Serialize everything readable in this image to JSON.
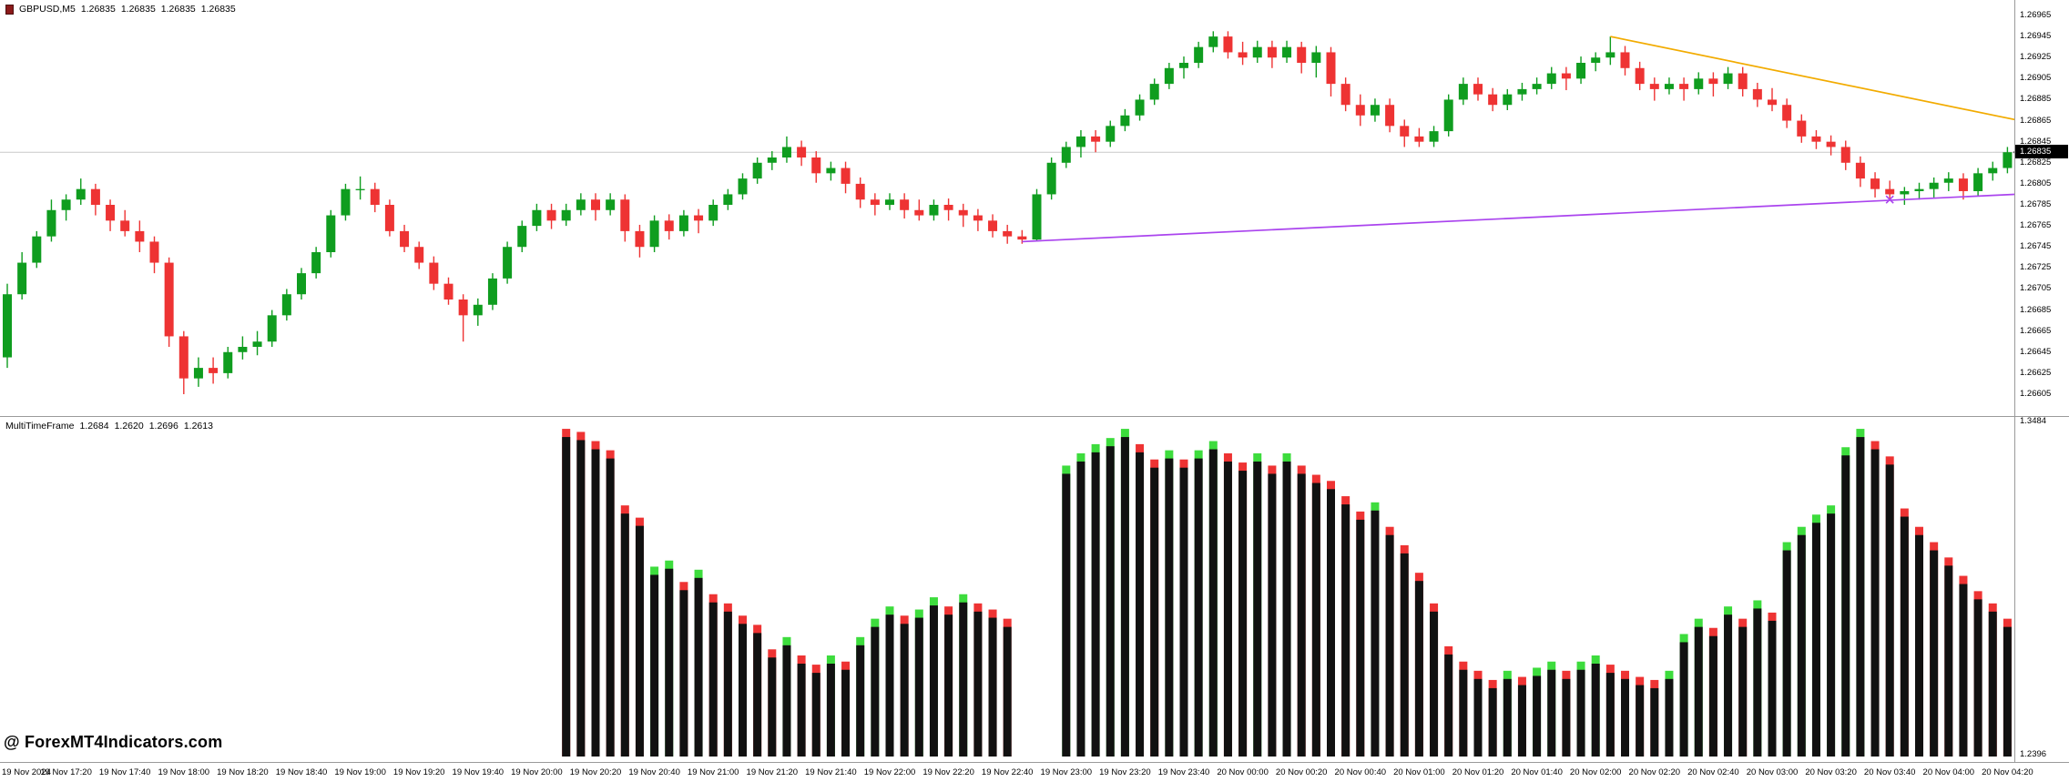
{
  "header": {
    "symbol": "GBPUSD,M5",
    "ohlc": [
      "1.26835",
      "1.26835",
      "1.26835",
      "1.26835"
    ]
  },
  "indicator_panel": {
    "name": "MultiTimeFrame",
    "values": [
      "1.2684",
      "1.2620",
      "1.2696",
      "1.2613"
    ]
  },
  "price_axis": {
    "current": "1.26835"
  },
  "watermark": {
    "text": "@ ForexMT4Indicators.com"
  },
  "colors": {
    "bull": "#0f9d1f",
    "bear": "#ee3333",
    "histogram": "#111111",
    "tip_green": "#3ddc3d",
    "tip_red": "#ee3333",
    "trend_yellow": "#f2ab00",
    "trend_violet": "#aa44ee",
    "current_line": "#c9c9c9",
    "price_badge_bg": "#000000",
    "price_badge_text": "#ffffff"
  },
  "chart_data": {
    "type": "candlestick",
    "title": "GBPUSD,M5",
    "symbol": "GBPUSD",
    "timeframe": "M5",
    "ylim": [
      1.26605,
      1.26965
    ],
    "current_price": 1.26835,
    "y_tick_labels": [
      "1.26965",
      "1.26945",
      "1.26925",
      "1.26905",
      "1.26885",
      "1.26865",
      "1.26845",
      "1.26825",
      "1.26805",
      "1.26785",
      "1.26765",
      "1.26745",
      "1.26725",
      "1.26705",
      "1.26685",
      "1.26665",
      "1.26645",
      "1.26625",
      "1.26605"
    ],
    "x_labels": [
      "19 Nov 2024",
      "19 Nov 17:20",
      "19 Nov 17:40",
      "19 Nov 18:00",
      "19 Nov 18:20",
      "19 Nov 18:40",
      "19 Nov 19:00",
      "19 Nov 19:20",
      "19 Nov 19:40",
      "19 Nov 20:00",
      "19 Nov 20:20",
      "19 Nov 20:40",
      "19 Nov 21:00",
      "19 Nov 21:20",
      "19 Nov 21:40",
      "19 Nov 22:00",
      "19 Nov 22:20",
      "19 Nov 22:40",
      "19 Nov 23:00",
      "19 Nov 23:20",
      "19 Nov 23:40",
      "20 Nov 00:00",
      "20 Nov 00:20",
      "20 Nov 00:40",
      "20 Nov 01:00",
      "20 Nov 01:20",
      "20 Nov 01:40",
      "20 Nov 02:00",
      "20 Nov 02:20",
      "20 Nov 02:40",
      "20 Nov 03:00",
      "20 Nov 03:20",
      "20 Nov 03:40",
      "20 Nov 04:00",
      "20 Nov 04:20"
    ],
    "candles_per_label": 4,
    "candles": [
      [
        1.2664,
        1.2671,
        1.2663,
        1.267
      ],
      [
        1.267,
        1.2674,
        1.26695,
        1.2673
      ],
      [
        1.2673,
        1.2676,
        1.26725,
        1.26755
      ],
      [
        1.26755,
        1.2679,
        1.2675,
        1.2678
      ],
      [
        1.2678,
        1.26795,
        1.2677,
        1.2679
      ],
      [
        1.2679,
        1.2681,
        1.26785,
        1.268
      ],
      [
        1.268,
        1.26805,
        1.26775,
        1.26785
      ],
      [
        1.26785,
        1.2679,
        1.2676,
        1.2677
      ],
      [
        1.2677,
        1.2678,
        1.26755,
        1.2676
      ],
      [
        1.2676,
        1.2677,
        1.2674,
        1.2675
      ],
      [
        1.2675,
        1.26755,
        1.2672,
        1.2673
      ],
      [
        1.2673,
        1.26735,
        1.2665,
        1.2666
      ],
      [
        1.2666,
        1.26665,
        1.26605,
        1.2662
      ],
      [
        1.2662,
        1.2664,
        1.26612,
        1.2663
      ],
      [
        1.2663,
        1.2664,
        1.26615,
        1.26625
      ],
      [
        1.26625,
        1.2665,
        1.2662,
        1.26645
      ],
      [
        1.26645,
        1.2666,
        1.26638,
        1.2665
      ],
      [
        1.2665,
        1.26665,
        1.26642,
        1.26655
      ],
      [
        1.26655,
        1.26685,
        1.2665,
        1.2668
      ],
      [
        1.2668,
        1.26705,
        1.26675,
        1.267
      ],
      [
        1.267,
        1.26725,
        1.26695,
        1.2672
      ],
      [
        1.2672,
        1.26745,
        1.26715,
        1.2674
      ],
      [
        1.2674,
        1.2678,
        1.26735,
        1.26775
      ],
      [
        1.26775,
        1.26805,
        1.2677,
        1.268
      ],
      [
        1.268,
        1.26812,
        1.2679,
        1.268
      ],
      [
        1.268,
        1.26806,
        1.26778,
        1.26785
      ],
      [
        1.26785,
        1.2679,
        1.26755,
        1.2676
      ],
      [
        1.2676,
        1.26766,
        1.2674,
        1.26745
      ],
      [
        1.26745,
        1.2675,
        1.26724,
        1.2673
      ],
      [
        1.2673,
        1.26736,
        1.26704,
        1.2671
      ],
      [
        1.2671,
        1.26716,
        1.2669,
        1.26695
      ],
      [
        1.26695,
        1.267,
        1.26655,
        1.2668
      ],
      [
        1.2668,
        1.26696,
        1.2667,
        1.2669
      ],
      [
        1.2669,
        1.2672,
        1.26685,
        1.26715
      ],
      [
        1.26715,
        1.2675,
        1.2671,
        1.26745
      ],
      [
        1.26745,
        1.2677,
        1.2674,
        1.26765
      ],
      [
        1.26765,
        1.26786,
        1.2676,
        1.2678
      ],
      [
        1.2678,
        1.26786,
        1.26762,
        1.2677
      ],
      [
        1.2677,
        1.26786,
        1.26765,
        1.2678
      ],
      [
        1.2678,
        1.26796,
        1.26775,
        1.2679
      ],
      [
        1.2679,
        1.26796,
        1.2677,
        1.2678
      ],
      [
        1.2678,
        1.26796,
        1.26775,
        1.2679
      ],
      [
        1.2679,
        1.26795,
        1.2675,
        1.2676
      ],
      [
        1.2676,
        1.26766,
        1.26735,
        1.26745
      ],
      [
        1.26745,
        1.26775,
        1.2674,
        1.2677
      ],
      [
        1.2677,
        1.26776,
        1.26752,
        1.2676
      ],
      [
        1.2676,
        1.2678,
        1.26755,
        1.26775
      ],
      [
        1.26775,
        1.26781,
        1.26758,
        1.2677
      ],
      [
        1.2677,
        1.2679,
        1.26765,
        1.26785
      ],
      [
        1.26785,
        1.268,
        1.2678,
        1.26795
      ],
      [
        1.26795,
        1.26815,
        1.2679,
        1.2681
      ],
      [
        1.2681,
        1.2683,
        1.26805,
        1.26825
      ],
      [
        1.26825,
        1.26836,
        1.26818,
        1.2683
      ],
      [
        1.2683,
        1.2685,
        1.26825,
        1.2684
      ],
      [
        1.2684,
        1.26846,
        1.26822,
        1.2683
      ],
      [
        1.2683,
        1.26836,
        1.26806,
        1.26815
      ],
      [
        1.26815,
        1.26826,
        1.26808,
        1.2682
      ],
      [
        1.2682,
        1.26826,
        1.26796,
        1.26805
      ],
      [
        1.26805,
        1.26811,
        1.26782,
        1.2679
      ],
      [
        1.2679,
        1.26796,
        1.26775,
        1.26785
      ],
      [
        1.26785,
        1.26796,
        1.2678,
        1.2679
      ],
      [
        1.2679,
        1.26796,
        1.26772,
        1.2678
      ],
      [
        1.2678,
        1.2679,
        1.2677,
        1.26775
      ],
      [
        1.26775,
        1.2679,
        1.2677,
        1.26785
      ],
      [
        1.26785,
        1.26791,
        1.2677,
        1.2678
      ],
      [
        1.2678,
        1.26786,
        1.26764,
        1.26775
      ],
      [
        1.26775,
        1.26781,
        1.2676,
        1.2677
      ],
      [
        1.2677,
        1.26776,
        1.26754,
        1.2676
      ],
      [
        1.2676,
        1.26766,
        1.26748,
        1.26755
      ],
      [
        1.26755,
        1.26761,
        1.26748,
        1.26752
      ],
      [
        1.26752,
        1.268,
        1.2675,
        1.26795
      ],
      [
        1.26795,
        1.2683,
        1.2679,
        1.26825
      ],
      [
        1.26825,
        1.26845,
        1.2682,
        1.2684
      ],
      [
        1.2684,
        1.26856,
        1.2683,
        1.2685
      ],
      [
        1.2685,
        1.26856,
        1.26835,
        1.26845
      ],
      [
        1.26845,
        1.26865,
        1.2684,
        1.2686
      ],
      [
        1.2686,
        1.26876,
        1.26855,
        1.2687
      ],
      [
        1.2687,
        1.2689,
        1.26865,
        1.26885
      ],
      [
        1.26885,
        1.26905,
        1.2688,
        1.269
      ],
      [
        1.269,
        1.2692,
        1.26895,
        1.26915
      ],
      [
        1.26915,
        1.26926,
        1.26905,
        1.2692
      ],
      [
        1.2692,
        1.2694,
        1.26915,
        1.26935
      ],
      [
        1.26935,
        1.2695,
        1.2693,
        1.26945
      ],
      [
        1.26945,
        1.2695,
        1.26924,
        1.2693
      ],
      [
        1.2693,
        1.2694,
        1.26918,
        1.26925
      ],
      [
        1.26925,
        1.26941,
        1.2692,
        1.26935
      ],
      [
        1.26935,
        1.26941,
        1.26915,
        1.26925
      ],
      [
        1.26925,
        1.26941,
        1.2692,
        1.26935
      ],
      [
        1.26935,
        1.2694,
        1.2691,
        1.2692
      ],
      [
        1.2692,
        1.26936,
        1.26906,
        1.2693
      ],
      [
        1.2693,
        1.26935,
        1.26888,
        1.269
      ],
      [
        1.269,
        1.26906,
        1.26874,
        1.2688
      ],
      [
        1.2688,
        1.2689,
        1.2686,
        1.2687
      ],
      [
        1.2687,
        1.26886,
        1.26864,
        1.2688
      ],
      [
        1.2688,
        1.26886,
        1.26854,
        1.2686
      ],
      [
        1.2686,
        1.26866,
        1.2684,
        1.2685
      ],
      [
        1.2685,
        1.26858,
        1.2684,
        1.26845
      ],
      [
        1.26845,
        1.2686,
        1.2684,
        1.26855
      ],
      [
        1.26855,
        1.2689,
        1.2685,
        1.26885
      ],
      [
        1.26885,
        1.26906,
        1.2688,
        1.269
      ],
      [
        1.269,
        1.26906,
        1.26884,
        1.2689
      ],
      [
        1.2689,
        1.26896,
        1.26874,
        1.2688
      ],
      [
        1.2688,
        1.26895,
        1.26875,
        1.2689
      ],
      [
        1.2689,
        1.26901,
        1.26884,
        1.26895
      ],
      [
        1.26895,
        1.26906,
        1.2689,
        1.269
      ],
      [
        1.269,
        1.26916,
        1.26895,
        1.2691
      ],
      [
        1.2691,
        1.26916,
        1.26894,
        1.26905
      ],
      [
        1.26905,
        1.26926,
        1.269,
        1.2692
      ],
      [
        1.2692,
        1.2693,
        1.26912,
        1.26925
      ],
      [
        1.26925,
        1.26945,
        1.26918,
        1.2693
      ],
      [
        1.2693,
        1.26936,
        1.26908,
        1.26915
      ],
      [
        1.26915,
        1.26921,
        1.26894,
        1.269
      ],
      [
        1.269,
        1.26906,
        1.26884,
        1.26895
      ],
      [
        1.26895,
        1.26906,
        1.2689,
        1.269
      ],
      [
        1.269,
        1.26906,
        1.26884,
        1.26895
      ],
      [
        1.26895,
        1.26911,
        1.2689,
        1.26905
      ],
      [
        1.26905,
        1.26911,
        1.26888,
        1.269
      ],
      [
        1.269,
        1.26916,
        1.26895,
        1.2691
      ],
      [
        1.2691,
        1.26916,
        1.26888,
        1.26895
      ],
      [
        1.26895,
        1.26901,
        1.26878,
        1.26885
      ],
      [
        1.26885,
        1.26896,
        1.26874,
        1.2688
      ],
      [
        1.2688,
        1.26886,
        1.26858,
        1.26865
      ],
      [
        1.26865,
        1.26871,
        1.26844,
        1.2685
      ],
      [
        1.2685,
        1.26856,
        1.26838,
        1.26845
      ],
      [
        1.26845,
        1.26851,
        1.26832,
        1.2684
      ],
      [
        1.2684,
        1.26846,
        1.26818,
        1.26825
      ],
      [
        1.26825,
        1.26831,
        1.26802,
        1.2681
      ],
      [
        1.2681,
        1.26816,
        1.26792,
        1.268
      ],
      [
        1.268,
        1.26808,
        1.2679,
        1.26795
      ],
      [
        1.26795,
        1.26802,
        1.26785,
        1.26798
      ],
      [
        1.26798,
        1.26806,
        1.2679,
        1.268
      ],
      [
        1.268,
        1.26811,
        1.26792,
        1.26806
      ],
      [
        1.26806,
        1.26816,
        1.26798,
        1.2681
      ],
      [
        1.2681,
        1.26815,
        1.2679,
        1.26798
      ],
      [
        1.26798,
        1.2682,
        1.26794,
        1.26815
      ],
      [
        1.26815,
        1.26826,
        1.26808,
        1.2682
      ],
      [
        1.2682,
        1.2684,
        1.26815,
        1.26835
      ]
    ],
    "trendlines": [
      {
        "name": "descending-trendline-yellow",
        "color": "#f2ab00",
        "x1_index": 109,
        "p1": 1.26945,
        "x2_index": 136.5,
        "p2": 1.26866
      },
      {
        "name": "ascending-trendline-violet",
        "color": "#aa44ee",
        "x1_index": 69,
        "p1": 1.2675,
        "x2_index": 136.5,
        "p2": 1.26795,
        "marker_index": 128,
        "marker_price": 1.2679
      }
    ],
    "indicator": {
      "type": "histogram",
      "name": "MultiTimeFrame",
      "values": [
        "1.2684",
        "1.2620",
        "1.2696",
        "1.2613"
      ],
      "ylim": [
        1.2396,
        1.3484
      ],
      "y_tick_labels": [
        "1.3484",
        "1.2396"
      ],
      "bars": [
        0,
        0,
        0,
        0,
        0,
        0,
        0,
        0,
        0,
        0,
        0,
        0,
        0,
        0,
        0,
        0,
        0,
        0,
        0,
        0,
        0,
        0,
        0,
        0,
        0,
        0,
        0,
        0,
        0,
        0,
        0,
        0,
        0,
        0,
        0,
        0,
        0,
        0,
        [
          1.346,
          "r"
        ],
        [
          1.345,
          "r"
        ],
        [
          1.342,
          "r"
        ],
        [
          1.339,
          "r"
        ],
        [
          1.321,
          "r"
        ],
        [
          1.317,
          "r"
        ],
        [
          1.301,
          "g"
        ],
        [
          1.303,
          "g"
        ],
        [
          1.296,
          "r"
        ],
        [
          1.3,
          "g"
        ],
        [
          1.292,
          "r"
        ],
        [
          1.289,
          "r"
        ],
        [
          1.285,
          "r"
        ],
        [
          1.282,
          "r"
        ],
        [
          1.274,
          "r"
        ],
        [
          1.278,
          "g"
        ],
        [
          1.272,
          "r"
        ],
        [
          1.269,
          "r"
        ],
        [
          1.272,
          "g"
        ],
        [
          1.27,
          "r"
        ],
        [
          1.278,
          "g"
        ],
        [
          1.284,
          "g"
        ],
        [
          1.288,
          "g"
        ],
        [
          1.285,
          "r"
        ],
        [
          1.287,
          "g"
        ],
        [
          1.291,
          "g"
        ],
        [
          1.288,
          "r"
        ],
        [
          1.292,
          "g"
        ],
        [
          1.289,
          "r"
        ],
        [
          1.287,
          "r"
        ],
        [
          1.284,
          "r"
        ],
        0,
        0,
        0,
        [
          1.334,
          "g"
        ],
        [
          1.338,
          "g"
        ],
        [
          1.341,
          "g"
        ],
        [
          1.343,
          "g"
        ],
        [
          1.346,
          "g"
        ],
        [
          1.341,
          "r"
        ],
        [
          1.336,
          "r"
        ],
        [
          1.339,
          "g"
        ],
        [
          1.336,
          "r"
        ],
        [
          1.339,
          "g"
        ],
        [
          1.342,
          "g"
        ],
        [
          1.338,
          "r"
        ],
        [
          1.335,
          "r"
        ],
        [
          1.338,
          "g"
        ],
        [
          1.334,
          "r"
        ],
        [
          1.338,
          "g"
        ],
        [
          1.334,
          "r"
        ],
        [
          1.331,
          "r"
        ],
        [
          1.329,
          "r"
        ],
        [
          1.324,
          "r"
        ],
        [
          1.319,
          "r"
        ],
        [
          1.322,
          "g"
        ],
        [
          1.314,
          "r"
        ],
        [
          1.308,
          "r"
        ],
        [
          1.299,
          "r"
        ],
        [
          1.289,
          "r"
        ],
        [
          1.275,
          "r"
        ],
        [
          1.27,
          "r"
        ],
        [
          1.267,
          "r"
        ],
        [
          1.264,
          "r"
        ],
        [
          1.267,
          "g"
        ],
        [
          1.265,
          "r"
        ],
        [
          1.268,
          "g"
        ],
        [
          1.27,
          "g"
        ],
        [
          1.267,
          "r"
        ],
        [
          1.27,
          "g"
        ],
        [
          1.272,
          "g"
        ],
        [
          1.269,
          "r"
        ],
        [
          1.267,
          "r"
        ],
        [
          1.265,
          "r"
        ],
        [
          1.264,
          "r"
        ],
        [
          1.267,
          "g"
        ],
        [
          1.279,
          "g"
        ],
        [
          1.284,
          "g"
        ],
        [
          1.281,
          "r"
        ],
        [
          1.288,
          "g"
        ],
        [
          1.284,
          "r"
        ],
        [
          1.29,
          "g"
        ],
        [
          1.286,
          "r"
        ],
        [
          1.309,
          "g"
        ],
        [
          1.314,
          "g"
        ],
        [
          1.318,
          "g"
        ],
        [
          1.321,
          "g"
        ],
        [
          1.34,
          "g"
        ],
        [
          1.346,
          "g"
        ],
        [
          1.342,
          "r"
        ],
        [
          1.337,
          "r"
        ],
        [
          1.32,
          "r"
        ],
        [
          1.314,
          "r"
        ],
        [
          1.309,
          "r"
        ],
        [
          1.304,
          "r"
        ],
        [
          1.298,
          "r"
        ],
        [
          1.293,
          "r"
        ],
        [
          1.289,
          "r"
        ],
        [
          1.284,
          "r"
        ]
      ]
    }
  }
}
